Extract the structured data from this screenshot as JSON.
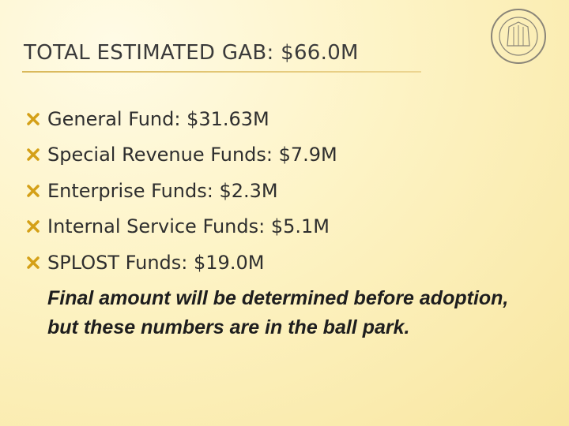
{
  "header": {
    "title": "TOTAL ESTIMATED GAB: $66.0M"
  },
  "bullets": [
    "General Fund: $31.63M",
    "Special Revenue Funds: $7.9M",
    "Enterprise Funds: $2.3M",
    "Internal Service Funds: $5.1M",
    "SPLOST Funds: $19.0M"
  ],
  "note": "Final amount will be determined before adoption, but these numbers are in the ball park."
}
